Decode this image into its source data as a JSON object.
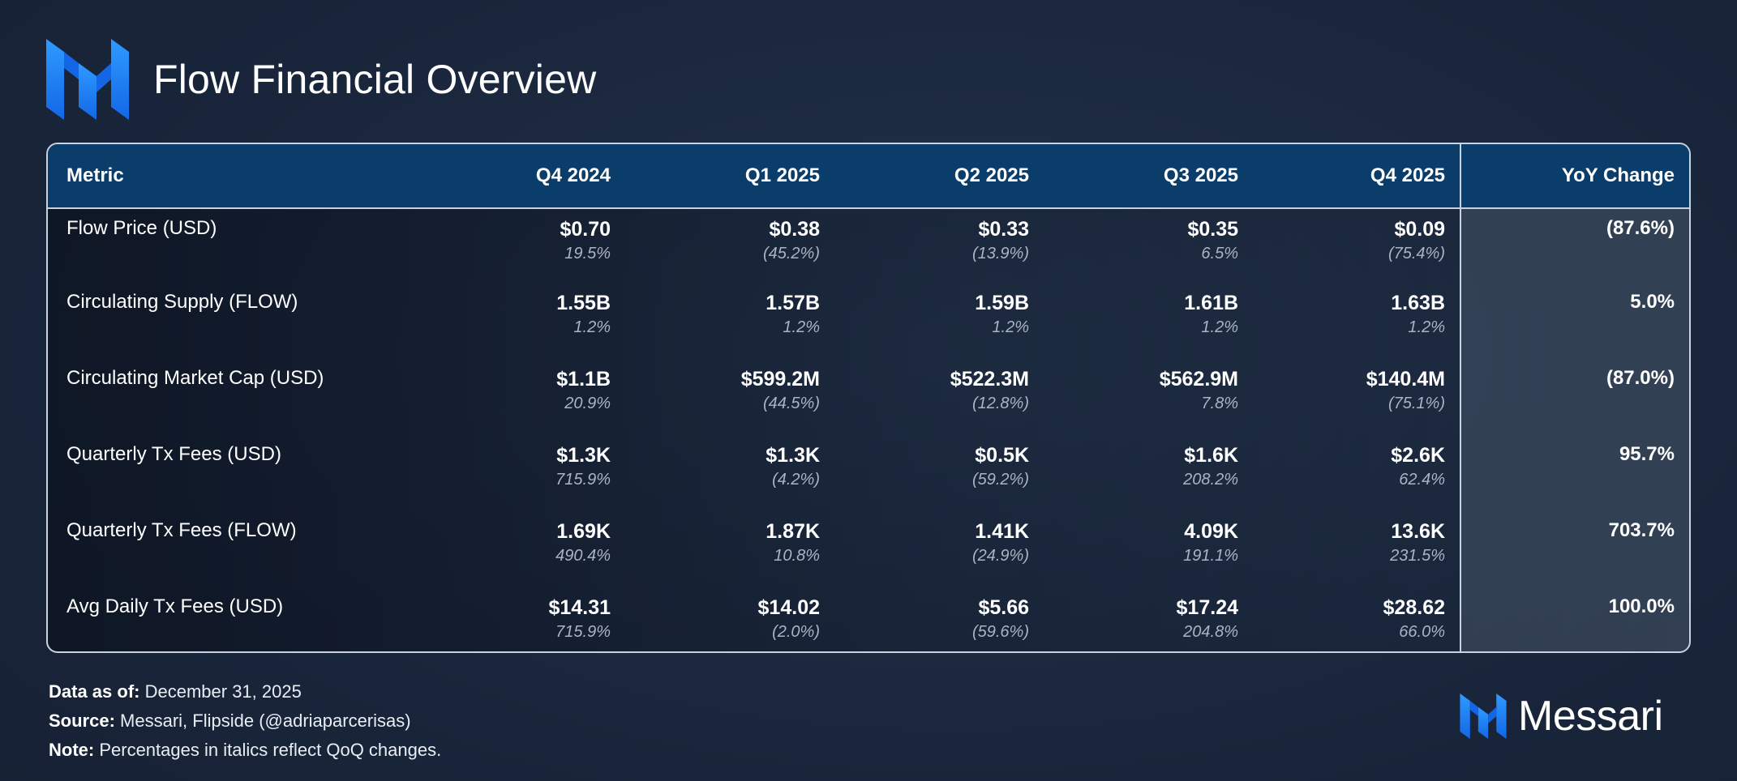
{
  "header": {
    "title": "Flow Financial Overview",
    "logo_icon": "messari-m-logo-icon",
    "accent": "#1e88ff"
  },
  "colors": {
    "header_bg": "#0b3d6b",
    "border": "#c7d3e2",
    "change_text": "#aab4c2"
  },
  "chart_data": {
    "type": "table",
    "columns": [
      "Metric",
      "Q4 2024",
      "Q1 2025",
      "Q2 2025",
      "Q3 2025",
      "Q4 2025",
      "YoY Change"
    ],
    "rows": [
      {
        "metric": "Flow Price (USD)",
        "values": [
          "$0.70",
          "$0.38",
          "$0.33",
          "$0.35",
          "$0.09"
        ],
        "changes": [
          "19.5%",
          "(45.2%)",
          "(13.9%)",
          "6.5%",
          "(75.4%)"
        ],
        "yoy": "(87.6%)"
      },
      {
        "metric": "Circulating Supply (FLOW)",
        "values": [
          "1.55B",
          "1.57B",
          "1.59B",
          "1.61B",
          "1.63B"
        ],
        "changes": [
          "1.2%",
          "1.2%",
          "1.2%",
          "1.2%",
          "1.2%"
        ],
        "yoy": "5.0%"
      },
      {
        "metric": "Circulating Market Cap (USD)",
        "values": [
          "$1.1B",
          "$599.2M",
          "$522.3M",
          "$562.9M",
          "$140.4M"
        ],
        "changes": [
          "20.9%",
          "(44.5%)",
          "(12.8%)",
          "7.8%",
          "(75.1%)"
        ],
        "yoy": "(87.0%)"
      },
      {
        "metric": "Quarterly Tx Fees (USD)",
        "values": [
          "$1.3K",
          "$1.3K",
          "$0.5K",
          "$1.6K",
          "$2.6K"
        ],
        "changes": [
          "715.9%",
          "(4.2%)",
          "(59.2%)",
          "208.2%",
          "62.4%"
        ],
        "yoy": "95.7%"
      },
      {
        "metric": "Quarterly Tx Fees (FLOW)",
        "values": [
          "1.69K",
          "1.87K",
          "1.41K",
          "4.09K",
          "13.6K"
        ],
        "changes": [
          "490.4%",
          "10.8%",
          "(24.9%)",
          "191.1%",
          "231.5%"
        ],
        "yoy": "703.7%"
      },
      {
        "metric": "Avg Daily Tx Fees (USD)",
        "values": [
          "$14.31",
          "$14.02",
          "$5.66",
          "$17.24",
          "$28.62"
        ],
        "changes": [
          "715.9%",
          "(2.0%)",
          "(59.6%)",
          "204.8%",
          "66.0%"
        ],
        "yoy": "100.0%"
      }
    ]
  },
  "notes": [
    {
      "label": "Data as of:",
      "text": " December 31, 2025"
    },
    {
      "label": "Source:",
      "text": " Messari, Flipside (@adriaparcerisas)"
    },
    {
      "label": "Note:",
      "text": " Percentages in italics reflect QoQ changes."
    }
  ],
  "brand": {
    "name": "Messari",
    "icon": "messari-m-logo-icon"
  }
}
